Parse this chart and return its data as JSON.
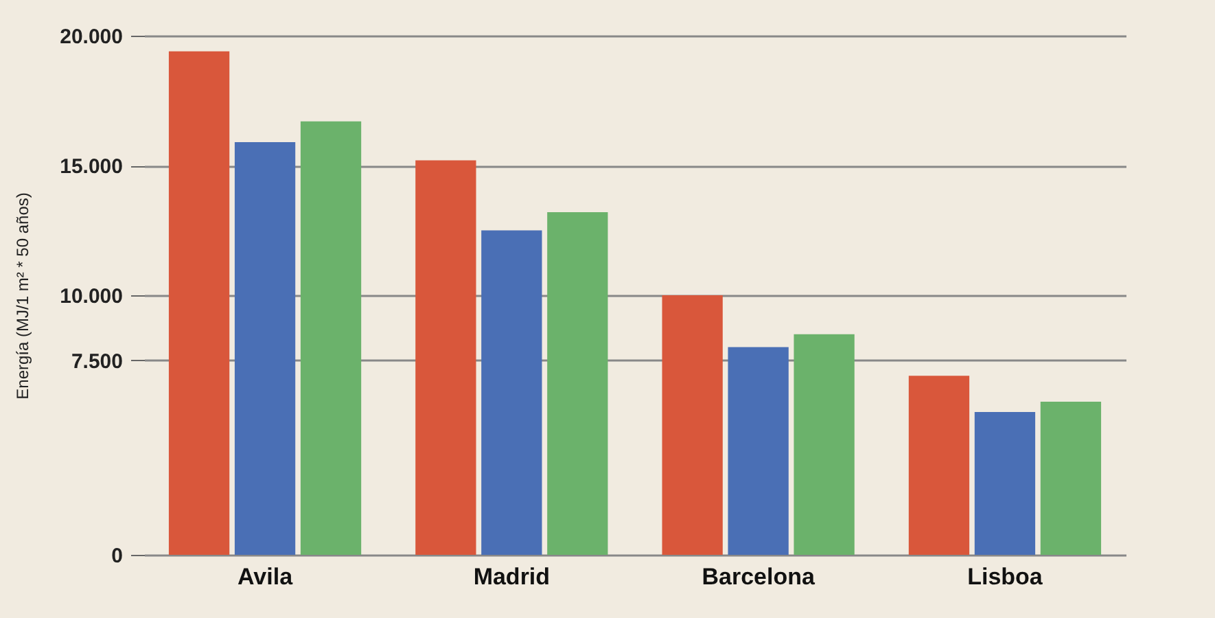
{
  "chart_data": {
    "type": "bar",
    "ylabel": "Energía (MJ/1 m² * 50 años)",
    "categories": [
      "Avila",
      "Madrid",
      "Barcelona",
      "Lisboa"
    ],
    "series": [
      {
        "color": "#d9573b",
        "values": [
          19400,
          15200,
          10000,
          6900
        ]
      },
      {
        "color": "#4a6fb5",
        "values": [
          15900,
          12500,
          8000,
          5500
        ]
      },
      {
        "color": "#6bb26b",
        "values": [
          16700,
          13200,
          8500,
          5900
        ]
      }
    ],
    "ylim": [
      0,
      20000
    ],
    "yticks": [
      {
        "value": 0,
        "label": "0"
      },
      {
        "value": 7500,
        "label": "7.500"
      },
      {
        "value": 10000,
        "label": "10.000"
      },
      {
        "value": 15000,
        "label": "15.000"
      },
      {
        "value": 20000,
        "label": "20.000"
      }
    ],
    "grid": "y",
    "legend": false
  }
}
